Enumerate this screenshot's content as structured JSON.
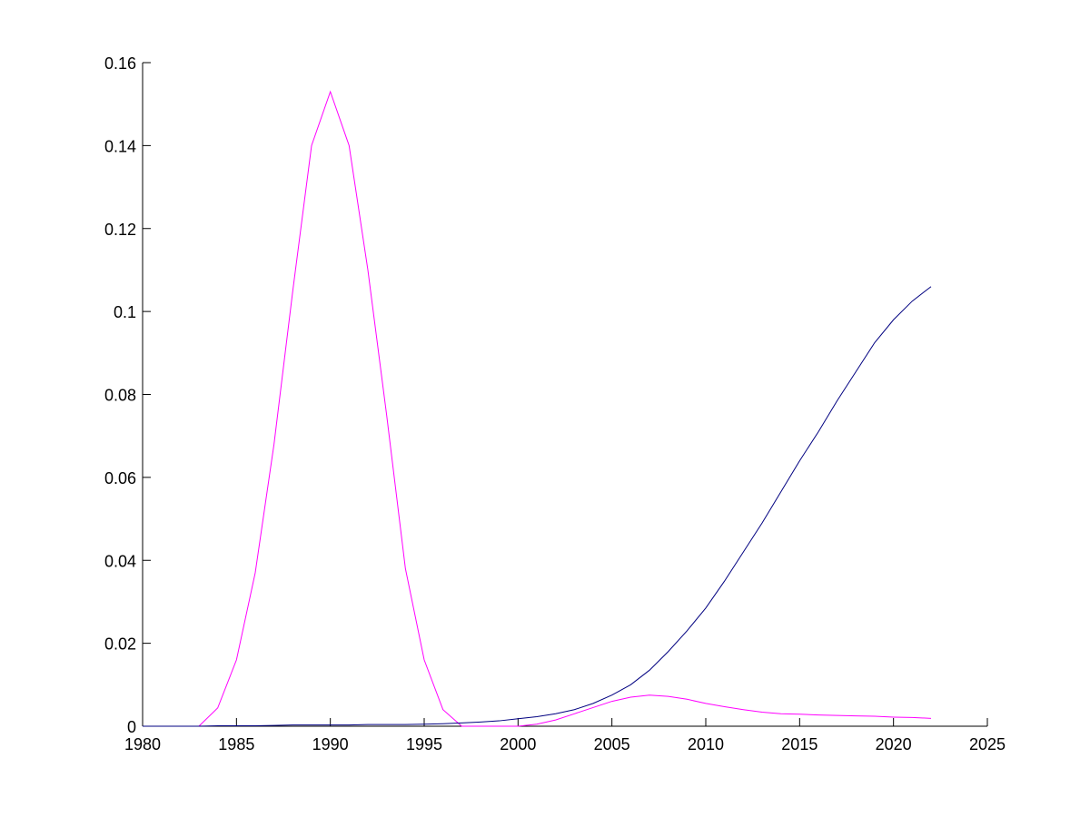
{
  "chart_data": {
    "type": "line",
    "x": [
      1980,
      1981,
      1982,
      1983,
      1984,
      1985,
      1986,
      1987,
      1988,
      1989,
      1990,
      1991,
      1992,
      1993,
      1994,
      1995,
      1996,
      1997,
      1998,
      1999,
      2000,
      2001,
      2002,
      2003,
      2004,
      2005,
      2006,
      2007,
      2008,
      2009,
      2010,
      2011,
      2012,
      2013,
      2014,
      2015,
      2016,
      2017,
      2018,
      2019,
      2020,
      2021,
      2022
    ],
    "series": [
      {
        "color": "#ff00ff",
        "values": [
          0,
          0,
          0,
          0,
          0.0044,
          0.016,
          0.037,
          0.068,
          0.105,
          0.14,
          0.153,
          0.14,
          0.11,
          0.075,
          0.038,
          0.016,
          0.004,
          0,
          0,
          0,
          0,
          0.0005,
          0.0015,
          0.003,
          0.0045,
          0.006,
          0.007,
          0.0075,
          0.0072,
          0.0065,
          0.0055,
          0.0047,
          0.004,
          0.0034,
          0.003,
          0.0029,
          0.0027,
          0.0026,
          0.0025,
          0.0024,
          0.0022,
          0.0021,
          0.0019
        ]
      },
      {
        "color": "#000080",
        "values": [
          0,
          0,
          0,
          0,
          0.0001,
          0.0001,
          0.0001,
          0.0002,
          0.0003,
          0.0003,
          0.0003,
          0.0003,
          0.0004,
          0.0004,
          0.0004,
          0.0005,
          0.0006,
          0.0008,
          0.001,
          0.0013,
          0.0018,
          0.0023,
          0.003,
          0.004,
          0.0055,
          0.0075,
          0.01,
          0.0135,
          0.018,
          0.023,
          0.0285,
          0.035,
          0.042,
          0.049,
          0.0565,
          0.064,
          0.071,
          0.0785,
          0.0855,
          0.0925,
          0.098,
          0.1025,
          0.106
        ]
      }
    ],
    "xlim": [
      1980,
      2025
    ],
    "xticks": [
      1980,
      1985,
      1990,
      1995,
      2000,
      2005,
      2010,
      2015,
      2020,
      2025
    ],
    "ylim": [
      0,
      0.16
    ],
    "yticks": [
      0,
      0.02,
      0.04,
      0.06,
      0.08,
      0.1,
      0.12,
      0.14,
      0.16
    ]
  }
}
